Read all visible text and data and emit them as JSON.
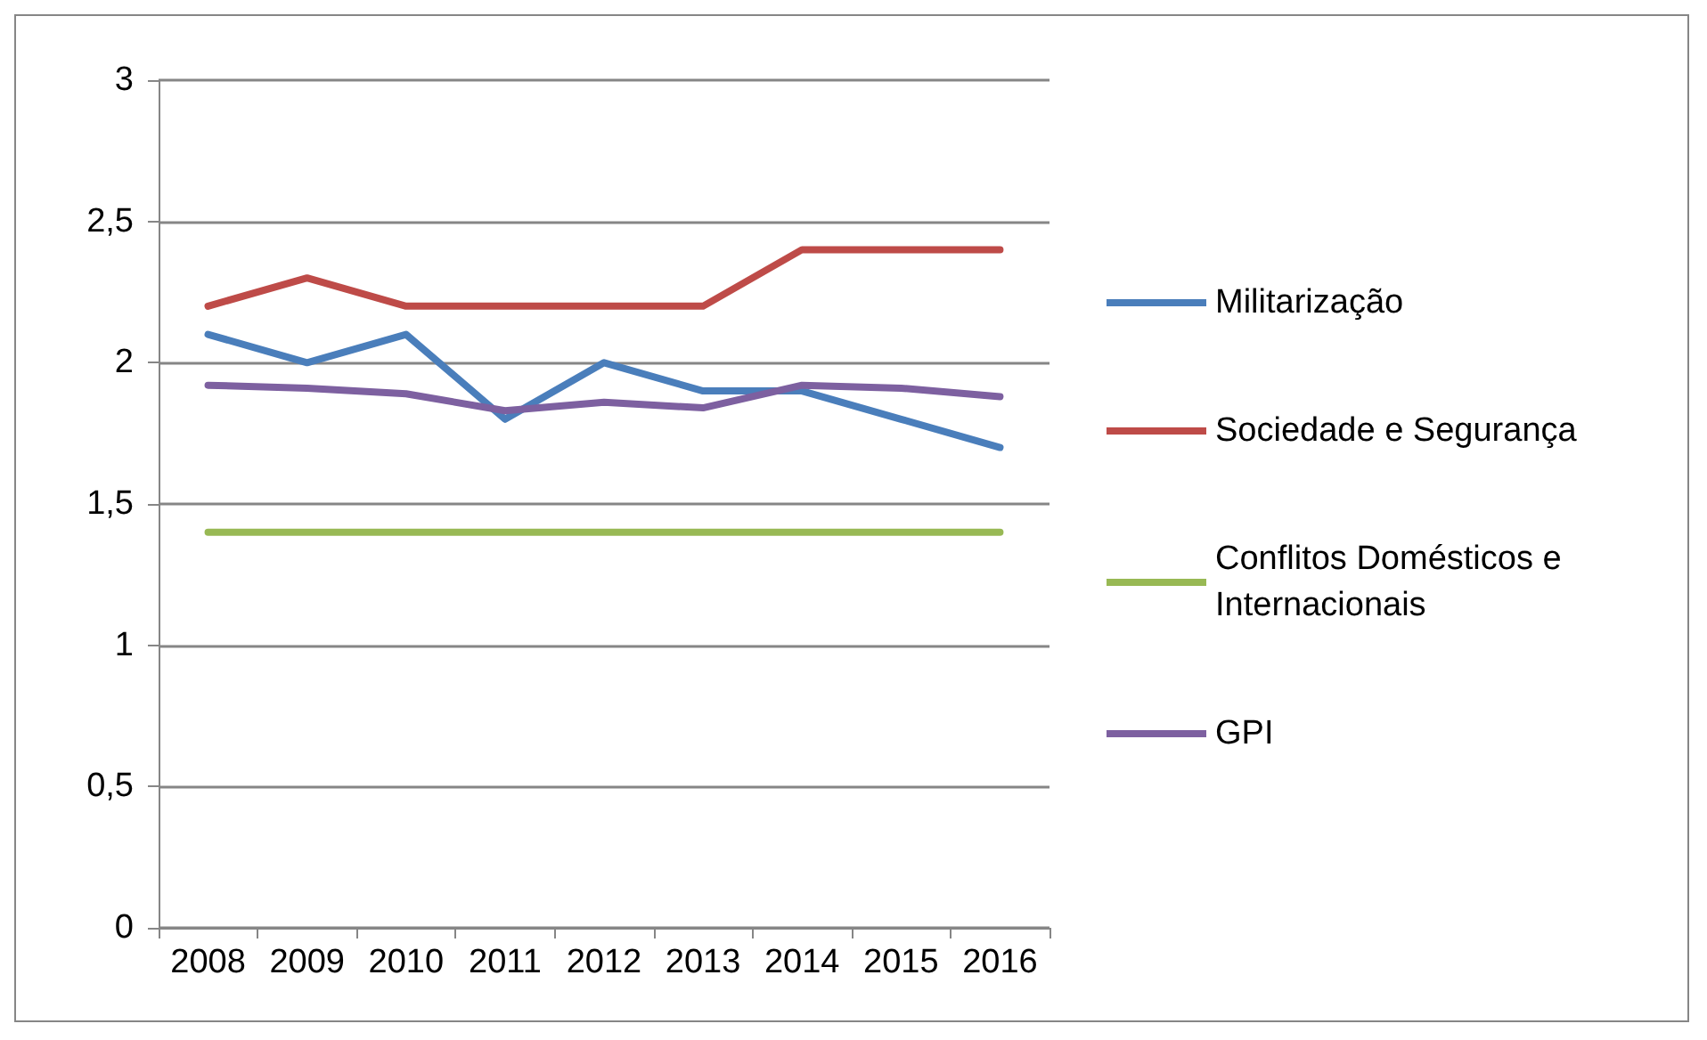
{
  "chart_data": {
    "type": "line",
    "categories": [
      "2008",
      "2009",
      "2010",
      "2011",
      "2012",
      "2013",
      "2014",
      "2015",
      "2016"
    ],
    "series": [
      {
        "name": "Militarização",
        "color": "#4a7ebb",
        "values": [
          2.1,
          2.0,
          2.1,
          1.8,
          2.0,
          1.9,
          1.9,
          1.8,
          1.7
        ]
      },
      {
        "name": "Sociedade e Segurança",
        "color": "#be4b48",
        "values": [
          2.2,
          2.3,
          2.2,
          2.2,
          2.2,
          2.2,
          2.4,
          2.4,
          2.4
        ]
      },
      {
        "name": "Conflitos Domésticos e Internacionais",
        "color": "#98b954",
        "values": [
          1.4,
          1.4,
          1.4,
          1.4,
          1.4,
          1.4,
          1.4,
          1.4,
          1.4
        ]
      },
      {
        "name": "GPI",
        "color": "#7d60a0",
        "values": [
          1.92,
          1.91,
          1.89,
          1.83,
          1.86,
          1.84,
          1.92,
          1.91,
          1.88
        ]
      }
    ],
    "ylim": [
      0,
      3
    ],
    "yticks": [
      0,
      {
        "value": 0.5,
        "label": "0,5"
      },
      1,
      {
        "value": 1.5,
        "label": "1,5"
      },
      2,
      {
        "value": 2.5,
        "label": "2,5"
      },
      3
    ],
    "grid": "y",
    "legend": "right",
    "marker": "none",
    "line_style": "solid"
  }
}
